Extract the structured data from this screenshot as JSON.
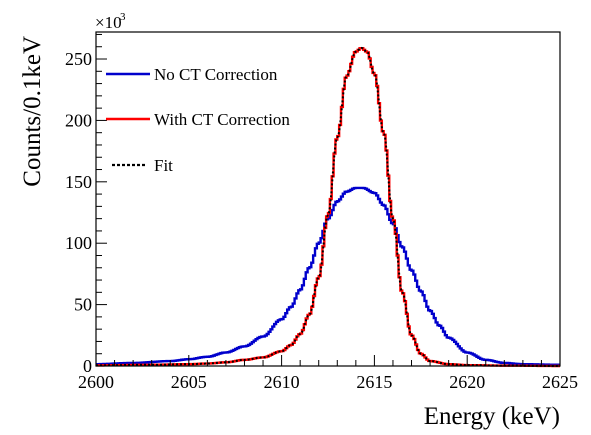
{
  "chart_data": {
    "type": "line",
    "title": "",
    "xlabel": "Energy (keV)",
    "ylabel": "Counts/0.1keV",
    "xlim": [
      2600,
      2625
    ],
    "ylim": [
      0,
      272
    ],
    "y_multiplier_label": "×10",
    "y_multiplier_exponent": "3",
    "x_ticks": [
      2600,
      2605,
      2610,
      2615,
      2620,
      2625
    ],
    "y_ticks": [
      0,
      50,
      100,
      150,
      200,
      250
    ],
    "legend_position": "top-left",
    "grid": false,
    "series": [
      {
        "name": "No CT Correction",
        "color": "#0000cc",
        "style": "step",
        "x": [
          2600,
          2602,
          2604,
          2605,
          2606,
          2607,
          2608,
          2609,
          2610,
          2610.5,
          2611,
          2611.5,
          2612,
          2612.5,
          2613,
          2613.5,
          2614,
          2614.4,
          2615,
          2615.5,
          2616,
          2616.5,
          2617,
          2617.5,
          2618,
          2618.5,
          2619,
          2620,
          2621,
          2622,
          2623,
          2625
        ],
        "values": [
          1.5,
          2.5,
          4,
          5.5,
          7.5,
          11,
          16,
          24,
          38,
          48,
          62,
          80,
          100,
          120,
          134,
          142,
          145,
          145,
          141,
          131,
          116,
          97,
          78,
          61,
          45,
          33,
          23,
          11,
          5,
          2.5,
          1.5,
          1
        ]
      },
      {
        "name": "With CT Correction",
        "color": "#ff0000",
        "style": "step",
        "x": [
          2600,
          2603,
          2605,
          2606,
          2607,
          2608,
          2609,
          2610,
          2610.5,
          2611,
          2611.5,
          2612,
          2612.5,
          2613,
          2613.5,
          2614,
          2614.3,
          2614.6,
          2615,
          2615.5,
          2616,
          2616.5,
          2617,
          2617.5,
          2618,
          2619,
          2620,
          2622,
          2625
        ],
        "values": [
          0.5,
          1,
          1.5,
          2,
          3,
          5,
          7,
          12,
          17,
          26,
          42,
          72,
          123,
          186,
          236,
          256,
          259,
          256,
          238,
          190,
          120,
          60,
          25,
          10,
          4,
          1.5,
          0.7,
          0.3,
          0
        ]
      },
      {
        "name": "Fit",
        "color": "#000000",
        "style": "dotted",
        "x": [
          2600,
          2603,
          2605,
          2606,
          2607,
          2608,
          2609,
          2610,
          2610.5,
          2611,
          2611.5,
          2612,
          2612.5,
          2613,
          2613.5,
          2614,
          2614.3,
          2614.6,
          2615,
          2615.5,
          2616,
          2616.5,
          2617,
          2617.5,
          2618,
          2619,
          2620,
          2622,
          2625
        ],
        "values": [
          0.5,
          1,
          1.5,
          2,
          3,
          5,
          7,
          12,
          17,
          26,
          42,
          72,
          123,
          186,
          236,
          256,
          259,
          256,
          238,
          190,
          120,
          60,
          25,
          10,
          4,
          1.5,
          0.7,
          0.3,
          0
        ]
      }
    ]
  }
}
